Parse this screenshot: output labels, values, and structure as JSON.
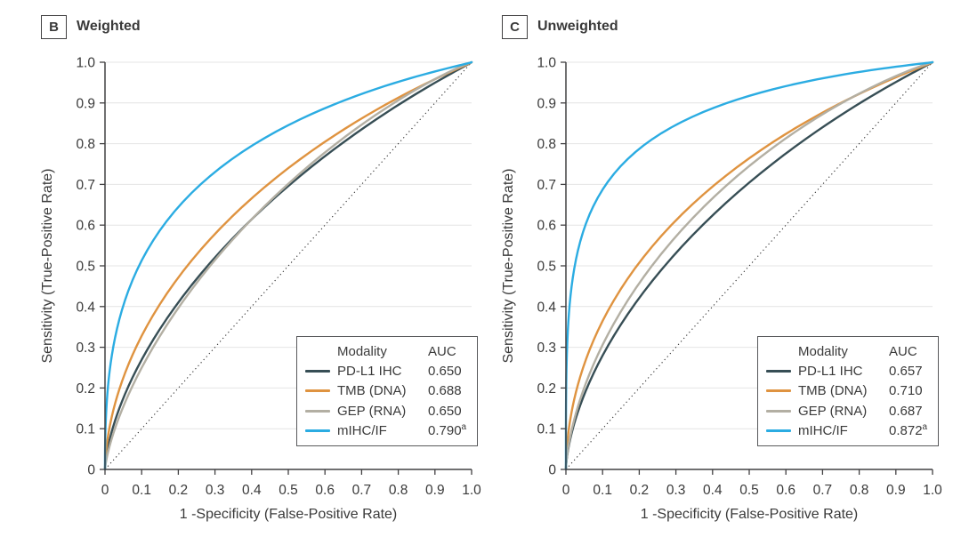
{
  "figure": {
    "background": "#ffffff",
    "text_color": "#3a3a3a",
    "grid_color": "#e4e4e4",
    "axis_color": "#414042",
    "diagonal_color": "#2b2b2b",
    "legend_border_color": "#58595b"
  },
  "legend": {
    "modality_header": "Modality",
    "auc_header": "AUC"
  },
  "axes": {
    "x_ticks": [
      "0",
      "0.1",
      "0.2",
      "0.3",
      "0.4",
      "0.5",
      "0.6",
      "0.7",
      "0.8",
      "0.9",
      "1.0"
    ],
    "y_ticks": [
      "0",
      "0.1",
      "0.2",
      "0.3",
      "0.4",
      "0.5",
      "0.6",
      "0.7",
      "0.8",
      "0.9",
      "1.0"
    ]
  },
  "chart_data": [
    {
      "type": "line",
      "subtype": "roc-curve",
      "panel_letter": "B",
      "title": "Weighted",
      "xlabel": "1 -Specificity (False-Positive Rate)",
      "ylabel": "Sensitivity (True-Positive Rate)",
      "xlim": [
        0,
        1
      ],
      "ylim": [
        0,
        1
      ],
      "grid": "horizontal",
      "diagonal_reference": true,
      "legend_position": "lower-right",
      "legend_columns": [
        "Modality",
        "AUC"
      ],
      "series": [
        {
          "name": "PD-L1 IHC",
          "auc": 0.65,
          "auc_display": "0.650",
          "auc_sup": "",
          "color": "#374E55"
        },
        {
          "name": "TMB (DNA)",
          "auc": 0.688,
          "auc_display": "0.688",
          "auc_sup": "",
          "color": "#DF9340"
        },
        {
          "name": "GEP (RNA)",
          "auc": 0.65,
          "auc_display": "0.650",
          "auc_sup": "",
          "color": "#B3AFA3"
        },
        {
          "name": "mIHC/IF",
          "auc": 0.79,
          "auc_display": "0.790",
          "auc_sup": "a",
          "color": "#2BACE2"
        }
      ]
    },
    {
      "type": "line",
      "subtype": "roc-curve",
      "panel_letter": "C",
      "title": "Unweighted",
      "xlabel": "1 -Specificity (False-Positive Rate)",
      "ylabel": "Sensitivity (True-Positive Rate)",
      "xlim": [
        0,
        1
      ],
      "ylim": [
        0,
        1
      ],
      "grid": "horizontal",
      "diagonal_reference": true,
      "legend_position": "lower-right",
      "legend_columns": [
        "Modality",
        "AUC"
      ],
      "series": [
        {
          "name": "PD-L1 IHC",
          "auc": 0.657,
          "auc_display": "0.657",
          "auc_sup": "",
          "color": "#374E55"
        },
        {
          "name": "TMB (DNA)",
          "auc": 0.71,
          "auc_display": "0.710",
          "auc_sup": "",
          "color": "#DF9340"
        },
        {
          "name": "GEP (RNA)",
          "auc": 0.687,
          "auc_display": "0.687",
          "auc_sup": "",
          "color": "#B3AFA3"
        },
        {
          "name": "mIHC/IF",
          "auc": 0.872,
          "auc_display": "0.872",
          "auc_sup": "a",
          "color": "#2BACE2"
        }
      ]
    }
  ]
}
